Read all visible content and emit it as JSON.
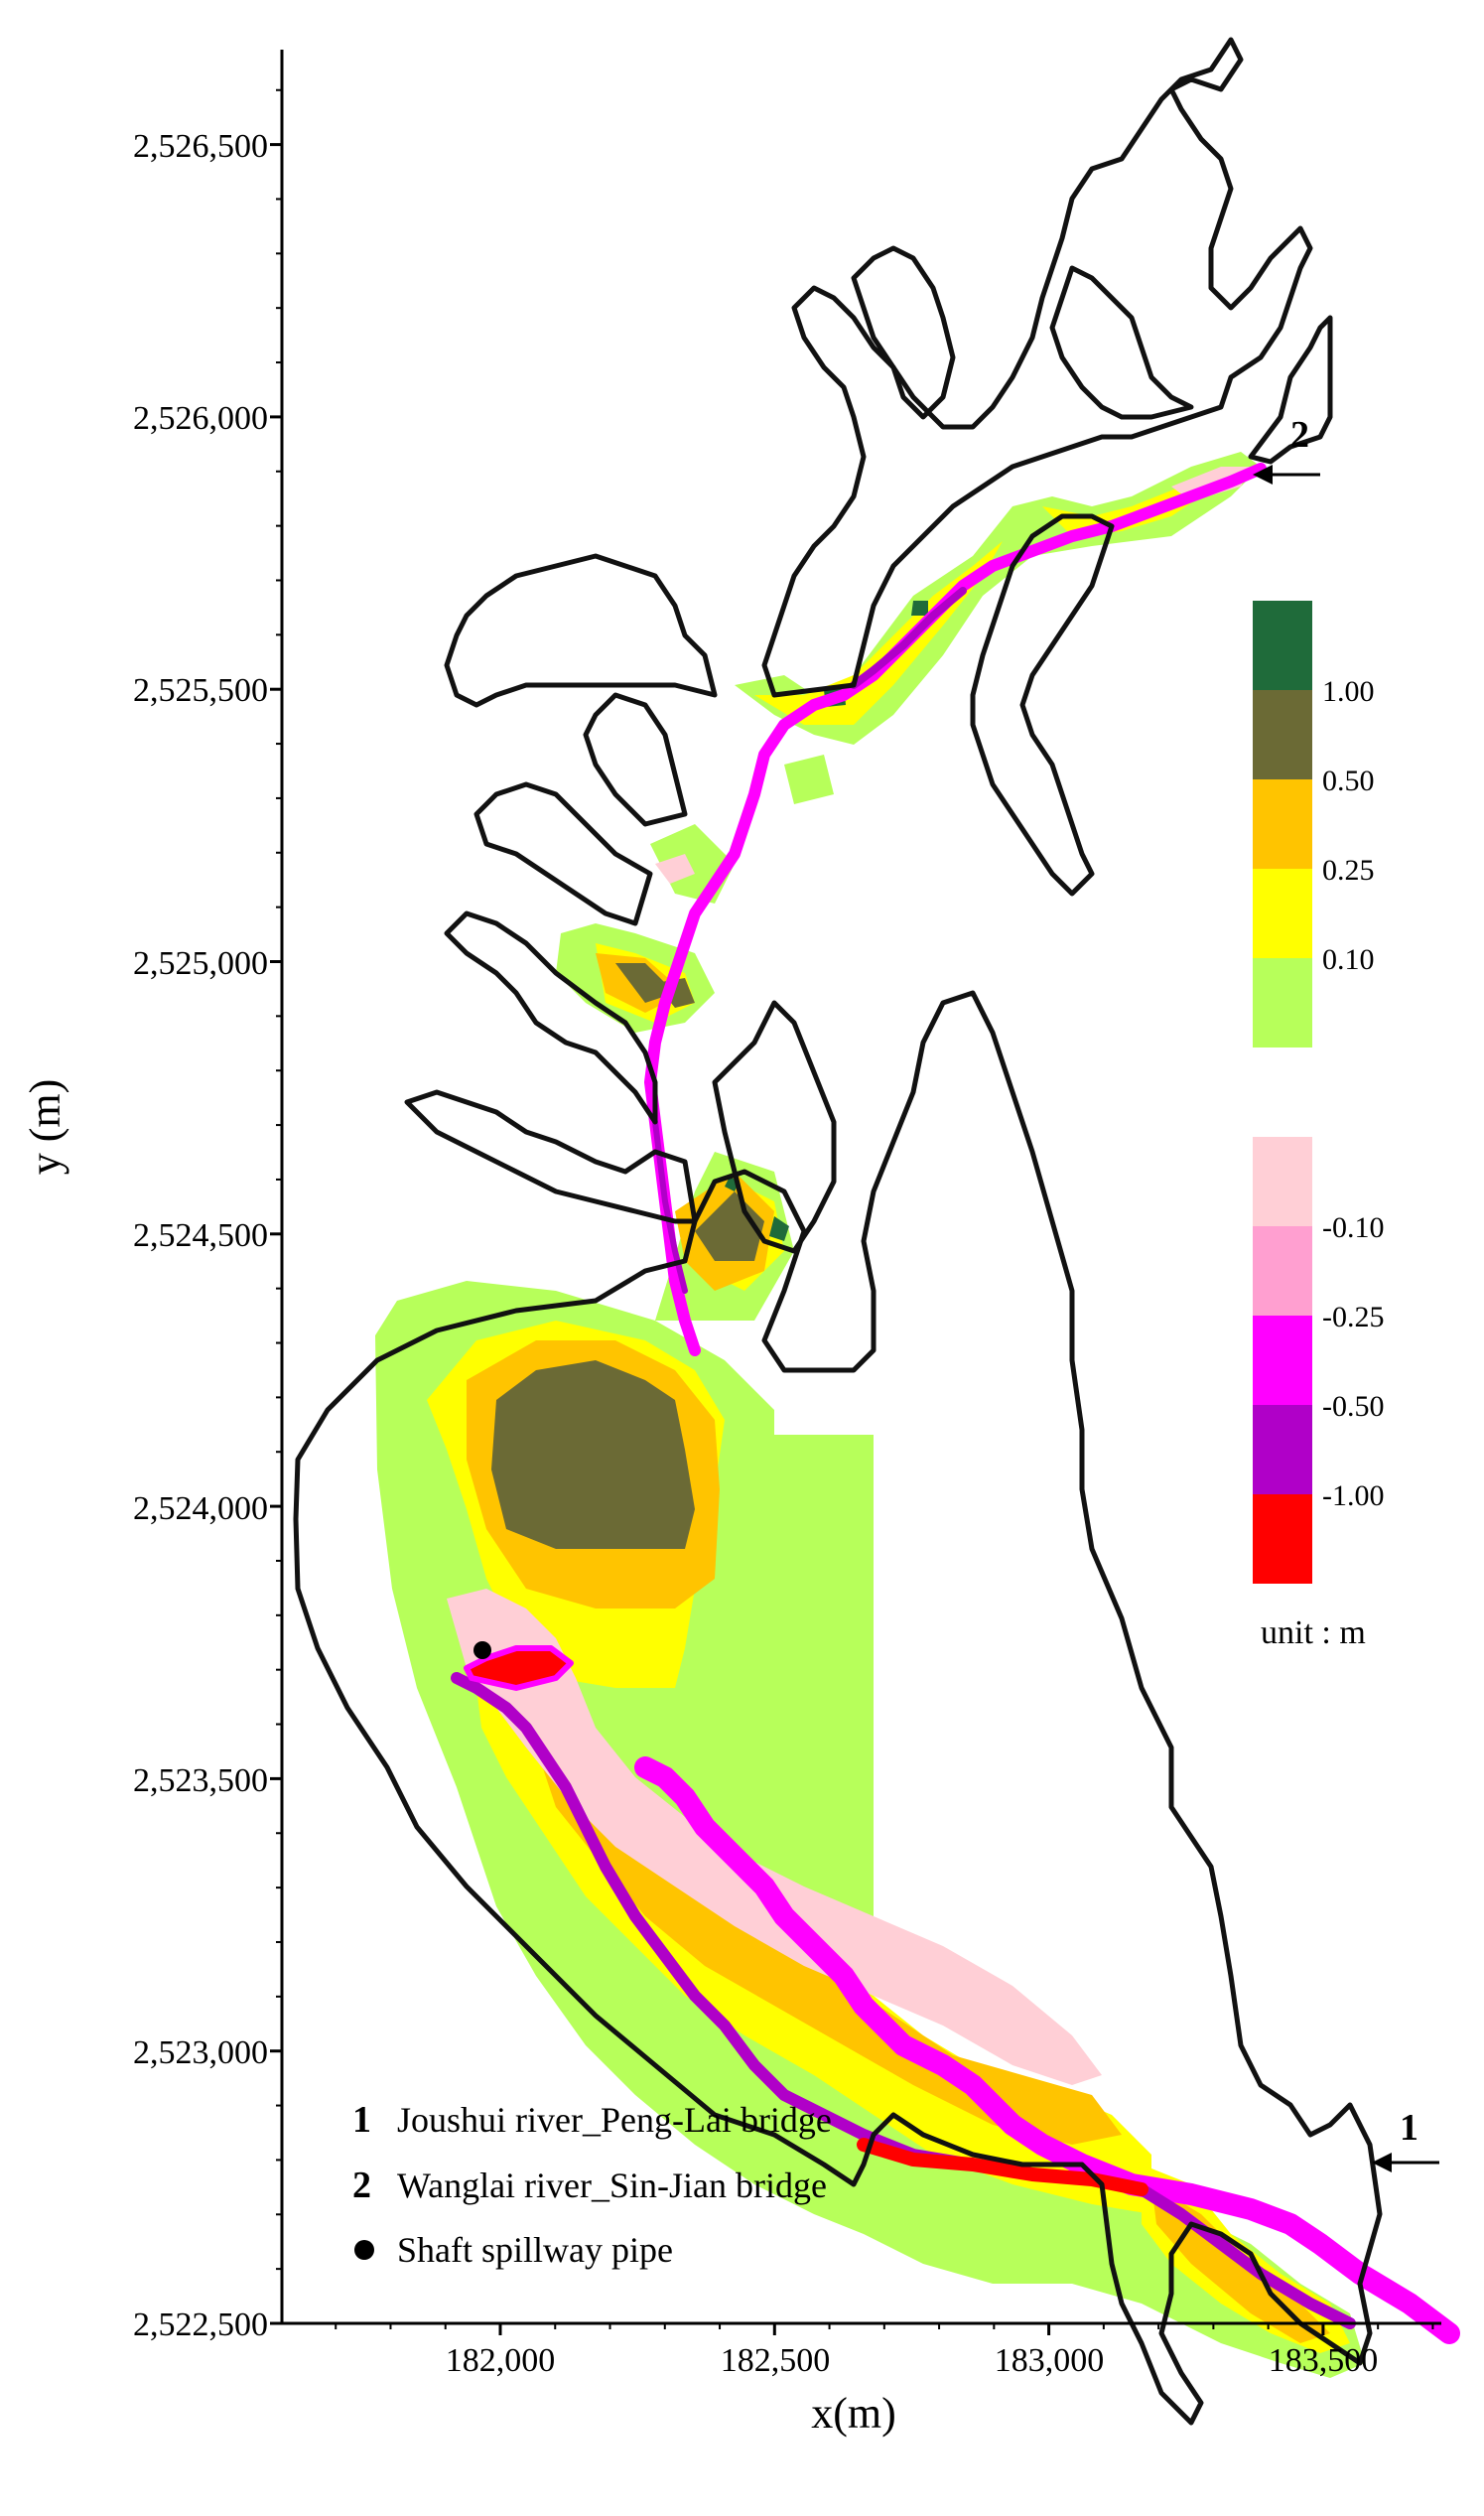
{
  "axes": {
    "x_title": "x(m)",
    "y_title": "y (m)",
    "x_ticks": [
      "182,000",
      "182,500",
      "183,000",
      "183,500"
    ],
    "y_ticks": [
      "2,522,500",
      "2,523,000",
      "2,523,500",
      "2,524,000",
      "2,524,500",
      "2,525,000",
      "2,525,500",
      "2,526,000",
      "2,526,500"
    ]
  },
  "colorbar_positive": {
    "labels": [
      "1.00",
      "0.50",
      "0.25",
      "0.10"
    ],
    "colors": [
      "#1f6b3a",
      "#6b6a35",
      "#ffc400",
      "#ffff00",
      "#b7ff5a"
    ]
  },
  "colorbar_negative": {
    "labels": [
      "-0.10",
      "-0.25",
      "-0.50",
      "-1.00"
    ],
    "colors": [
      "#ffcfd6",
      "#ff9fd0",
      "#ff00ff",
      "#b000c8",
      "#ff0000"
    ]
  },
  "unit_label": "unit : m",
  "markers": {
    "m1": "1",
    "m2": "2"
  },
  "key": [
    {
      "symbol": "1",
      "text": "Joushui river_Peng-Lai bridge"
    },
    {
      "symbol": "2",
      "text": "Wanglai river_Sin-Jian bridge"
    },
    {
      "symbol": "dot",
      "text": "Shaft spillway pipe"
    }
  ]
}
